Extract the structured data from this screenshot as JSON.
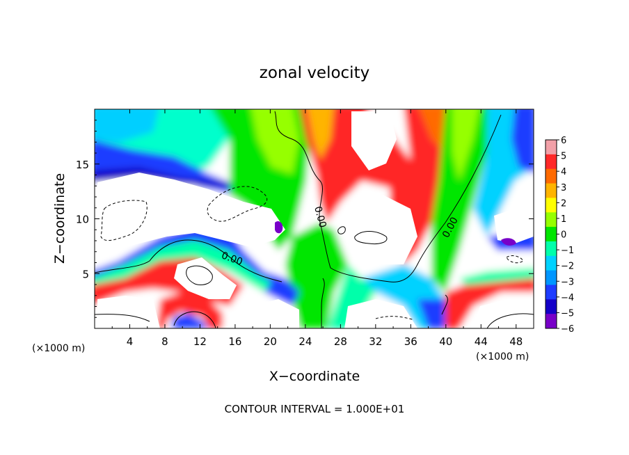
{
  "chart_data": {
    "type": "heatmap",
    "title": "zonal velocity",
    "xlabel": "X−coordinate",
    "ylabel": "Z−coordinate",
    "x_unit_label": "(×1000 m)",
    "z_unit_label": "(×1000 m)",
    "footer": "CONTOUR INTERVAL = 1.000E+01",
    "xlim": [
      0,
      50
    ],
    "ylim": [
      0,
      20
    ],
    "x_ticks": [
      4,
      8,
      12,
      16,
      20,
      24,
      28,
      32,
      36,
      40,
      44,
      48
    ],
    "y_ticks": [
      5,
      10,
      15
    ],
    "contour_labels": [
      "0.00",
      "0.00",
      "0.00"
    ],
    "colorbar": {
      "min": -6,
      "max": 6,
      "ticks": [
        6,
        5,
        4,
        3,
        2,
        1,
        0,
        -1,
        -2,
        -3,
        -4,
        -5,
        -6
      ],
      "tick_labels": [
        "6",
        "5",
        "4",
        "3",
        "2",
        "1",
        "0",
        "−1",
        "−2",
        "−3",
        "−4",
        "−5",
        "−6"
      ],
      "colors": [
        "#f2a0a8",
        "#ff2828",
        "#ff6a00",
        "#ffb400",
        "#ffff00",
        "#96ff00",
        "#00e600",
        "#00ffaa",
        "#00d2ff",
        "#0096ff",
        "#1e3cff",
        "#1400c8",
        "#7800c8"
      ]
    }
  }
}
